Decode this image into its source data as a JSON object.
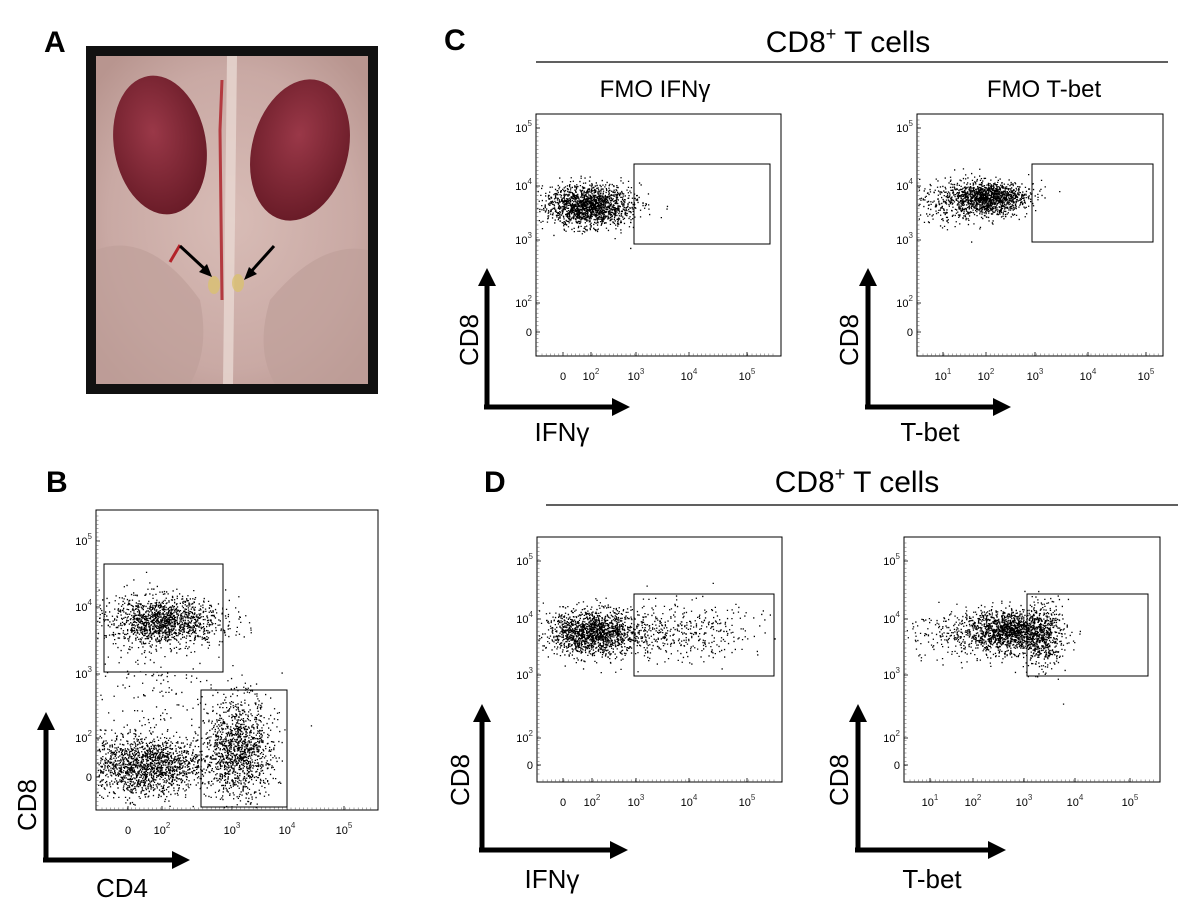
{
  "colors": {
    "ink": "#000000",
    "background": "#ffffff",
    "photo_frame": "#111111",
    "tissue": "#c9a9a4",
    "kidney": "#7a2230"
  },
  "panel_labels": {
    "a": "A",
    "b": "B",
    "c": "C",
    "d": "D"
  },
  "panel_c": {
    "title": "CD8",
    "title_sup": "+",
    "title_rest": " T cells",
    "left_subtitle": "FMO IFNγ",
    "right_subtitle": "FMO T-bet"
  },
  "panel_d": {
    "title": "CD8",
    "title_sup": "+",
    "title_rest": " T cells"
  },
  "axis_labels": {
    "b_y": "CD8",
    "b_x": "CD4",
    "c_left_y": "CD8",
    "c_left_x": "IFNγ",
    "c_right_y": "CD8",
    "c_right_x": "T-bet",
    "d_left_y": "CD8",
    "d_left_x": "IFNγ",
    "d_right_y": "CD8",
    "d_right_x": "T-bet"
  },
  "photo": {
    "arrow_icon_count": 2
  },
  "chart_data": [
    {
      "panel": "B",
      "type": "scatter",
      "xlabel": "CD4",
      "ylabel": "CD8",
      "scale": "biexponential",
      "x_ticks": [
        "0",
        "10^2",
        "10^3",
        "10^4",
        "10^5"
      ],
      "y_ticks": [
        "0",
        "10^2",
        "10^3",
        "10^4",
        "10^5"
      ],
      "populations": [
        {
          "x_center": 30,
          "y_center": 7000,
          "gated": true
        },
        {
          "x_center": 40,
          "y_center": 30,
          "gated": false
        },
        {
          "x_center": 1500,
          "y_center": 40,
          "gated": true
        }
      ],
      "gates": [
        {
          "x_range": [
            -120,
            500
          ],
          "y_range": [
            1000,
            40000
          ]
        },
        {
          "x_range": [
            300,
            5000
          ],
          "y_range": [
            -100,
            400
          ]
        }
      ]
    },
    {
      "panel": "C",
      "type": "scatter",
      "subtitle": "FMO IFNγ",
      "xlabel": "IFNγ",
      "ylabel": "CD8",
      "x_ticks": [
        "0",
        "10^2",
        "10^3",
        "10^4",
        "10^5"
      ],
      "y_ticks": [
        "0",
        "10^2",
        "10^3",
        "10^4",
        "10^5"
      ],
      "populations": [
        {
          "x_center": 80,
          "y_center": 6000
        }
      ],
      "gates": [
        {
          "x_range": [
            500,
            200000
          ],
          "y_range": [
            1000,
            28000
          ]
        }
      ]
    },
    {
      "panel": "C",
      "type": "scatter",
      "subtitle": "FMO T-bet",
      "xlabel": "T-bet",
      "ylabel": "CD8",
      "x_ticks": [
        "10^1",
        "10^2",
        "10^3",
        "10^4",
        "10^5"
      ],
      "y_ticks": [
        "0",
        "10^2",
        "10^3",
        "10^4",
        "10^5"
      ],
      "populations": [
        {
          "x_center": 80,
          "y_center": 7000
        }
      ],
      "gates": [
        {
          "x_range": [
            700,
            200000
          ],
          "y_range": [
            1000,
            28000
          ]
        }
      ]
    },
    {
      "panel": "D",
      "type": "scatter",
      "xlabel": "IFNγ",
      "ylabel": "CD8",
      "x_ticks": [
        "0",
        "10^2",
        "10^3",
        "10^4",
        "10^5"
      ],
      "y_ticks": [
        "0",
        "10^2",
        "10^3",
        "10^4",
        "10^5"
      ],
      "populations": [
        {
          "x_center": 80,
          "y_center": 6000
        }
      ],
      "gates": [
        {
          "x_range": [
            500,
            200000
          ],
          "y_range": [
            1000,
            28000
          ]
        }
      ]
    },
    {
      "panel": "D",
      "type": "scatter",
      "xlabel": "T-bet",
      "ylabel": "CD8",
      "x_ticks": [
        "10^1",
        "10^2",
        "10^3",
        "10^4",
        "10^5"
      ],
      "y_ticks": [
        "0",
        "10^2",
        "10^3",
        "10^4",
        "10^5"
      ],
      "populations": [
        {
          "x_center": 400,
          "y_center": 6000
        }
      ],
      "gates": [
        {
          "x_range": [
            700,
            200000
          ],
          "y_range": [
            1000,
            28000
          ]
        }
      ]
    }
  ]
}
